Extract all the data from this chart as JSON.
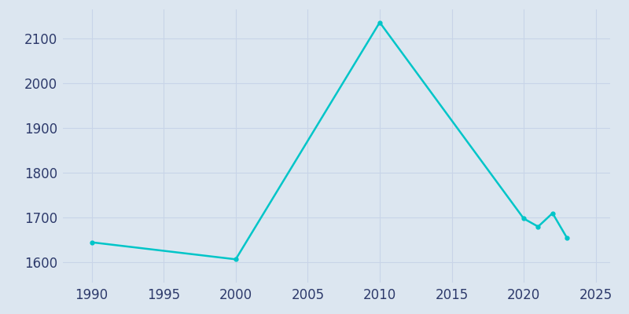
{
  "years": [
    1990,
    2000,
    2010,
    2020,
    2021,
    2022,
    2023
  ],
  "population": [
    1645,
    1607,
    2136,
    1698,
    1680,
    1710,
    1655
  ],
  "line_color": "#00C5C8",
  "axes_background": "#DCE6F0",
  "figure_background": "#DCE6F0",
  "xlim": [
    1988,
    2026
  ],
  "ylim": [
    1555,
    2165
  ],
  "yticks": [
    1600,
    1700,
    1800,
    1900,
    2000,
    2100
  ],
  "xticks": [
    1990,
    1995,
    2000,
    2005,
    2010,
    2015,
    2020,
    2025
  ],
  "grid_color": "#C8D4E8",
  "line_width": 1.8,
  "tick_label_color": "#2D3A6B",
  "tick_fontsize": 12
}
